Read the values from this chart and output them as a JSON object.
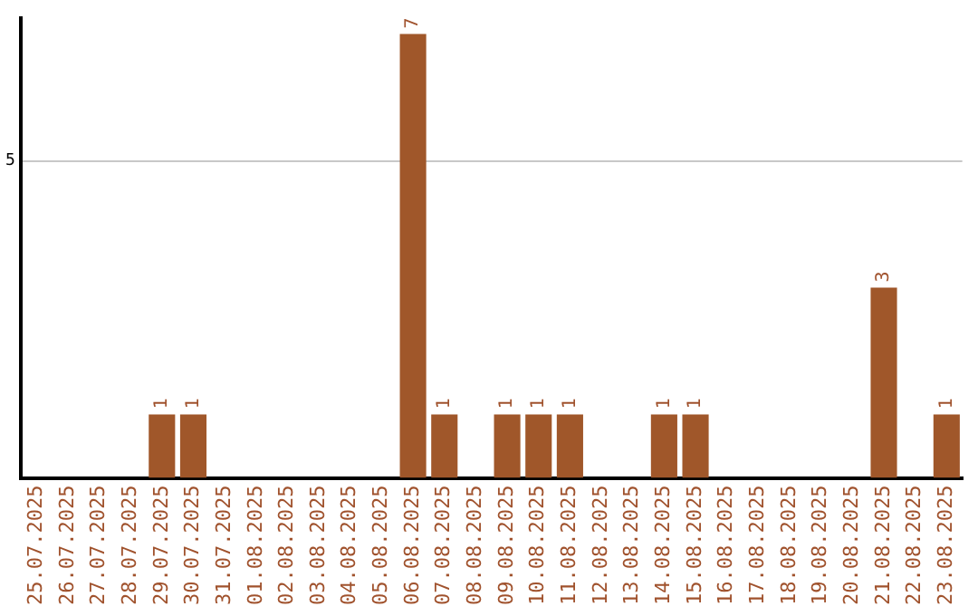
{
  "chart_data": {
    "type": "bar",
    "categories": [
      "25.07.2025",
      "26.07.2025",
      "27.07.2025",
      "28.07.2025",
      "29.07.2025",
      "30.07.2025",
      "31.07.2025",
      "01.08.2025",
      "02.08.2025",
      "03.08.2025",
      "04.08.2025",
      "05.08.2025",
      "06.08.2025",
      "07.08.2025",
      "08.08.2025",
      "09.08.2025",
      "10.08.2025",
      "11.08.2025",
      "12.08.2025",
      "13.08.2025",
      "14.08.2025",
      "15.08.2025",
      "16.08.2025",
      "17.08.2025",
      "18.08.2025",
      "19.08.2025",
      "20.08.2025",
      "21.08.2025",
      "22.08.2025",
      "23.08.2025"
    ],
    "values": [
      0,
      0,
      0,
      0,
      1,
      1,
      0,
      0,
      0,
      0,
      0,
      0,
      7,
      1,
      0,
      1,
      1,
      1,
      0,
      0,
      1,
      1,
      0,
      0,
      0,
      0,
      0,
      3,
      0,
      1
    ],
    "value_labels": [
      null,
      null,
      null,
      null,
      "1",
      "1",
      null,
      null,
      null,
      null,
      null,
      null,
      "7",
      "1",
      null,
      "1",
      "1",
      "1",
      null,
      null,
      "1",
      "1",
      null,
      null,
      null,
      null,
      null,
      "3",
      null,
      "1"
    ],
    "color": "#a0572a",
    "ylim": [
      0,
      7.25
    ],
    "yticks": [
      5
    ],
    "grid": "y",
    "legend": false
  }
}
